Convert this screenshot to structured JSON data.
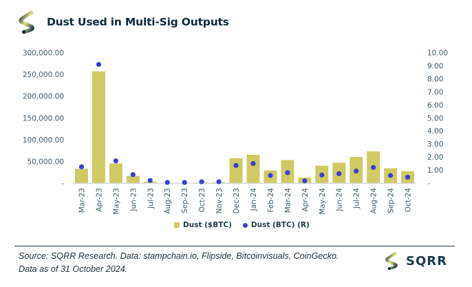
{
  "header": {
    "title": "Dust Used in Multi-Sig Outputs",
    "logo_icon": "sqrr-s-logo-icon"
  },
  "colors": {
    "bar": "#cfca63",
    "dot": "#3a3fd8",
    "title": "#0f2b3d",
    "axis_text": "#3e5a68",
    "baseline": "#d9d9d9"
  },
  "chart_data": {
    "type": "bar",
    "title": "Dust Used in Multi-Sig Outputs",
    "xlabel": "",
    "ylabel": "",
    "categories": [
      "Mar-23",
      "Apr-23",
      "May-23",
      "Jun-23",
      "Jul-23",
      "Aug-23",
      "Sep-23",
      "Oct-23",
      "Nov-23",
      "Dec-23",
      "Jan-24",
      "Feb-24",
      "Mar-24",
      "Apr-24",
      "May-24",
      "Jun-24",
      "Jul-24",
      "Aug-24",
      "Sep-24",
      "Oct-24"
    ],
    "series": [
      {
        "name": "Dust ($BTC)",
        "type": "bar",
        "axis": "left",
        "values": [
          33000,
          257000,
          45000,
          16500,
          3500,
          300,
          200,
          1500,
          2000,
          57000,
          65000,
          29000,
          53000,
          12500,
          40000,
          47000,
          60000,
          73000,
          34000,
          27500
        ]
      },
      {
        "name": "Dust (BTC) (R)",
        "type": "scatter",
        "axis": "right",
        "values": [
          1.25,
          9.1,
          1.7,
          0.65,
          0.2,
          0.05,
          0.05,
          0.1,
          0.1,
          1.35,
          1.5,
          0.58,
          0.8,
          0.17,
          0.62,
          0.72,
          0.92,
          1.2,
          0.58,
          0.45
        ]
      }
    ],
    "y_left": {
      "ylim": [
        0,
        300000
      ],
      "ticks": [
        0,
        50000,
        100000,
        150000,
        200000,
        250000,
        300000
      ],
      "tick_labels": [
        "-",
        "50,000.00",
        "100,000.00",
        "150,000.00",
        "200,000.00",
        "250,000.00",
        "300,000.00"
      ]
    },
    "y_right": {
      "ylim": [
        0,
        10
      ],
      "ticks": [
        0,
        1,
        2,
        3,
        4,
        5,
        6,
        7,
        8,
        9,
        10
      ],
      "tick_labels": [
        "-",
        "1.00",
        "2.00",
        "3.00",
        "4.00",
        "5.00",
        "6.00",
        "7.00",
        "8.00",
        "9.00",
        "10.00"
      ]
    },
    "grid": false,
    "legend_position": "bottom-center"
  },
  "legend": {
    "items": [
      {
        "label": "Dust ($BTC)",
        "marker": "square"
      },
      {
        "label": "Dust (BTC) (R)",
        "marker": "circle"
      }
    ]
  },
  "footer": {
    "source_line1": "Source: SQRR Research. Data: stampchain.io, Flipside, Bitcoinvisuals, CoinGecko.",
    "source_line2": "Data as of 31 October 2024.",
    "brand_name": "SQRR"
  }
}
